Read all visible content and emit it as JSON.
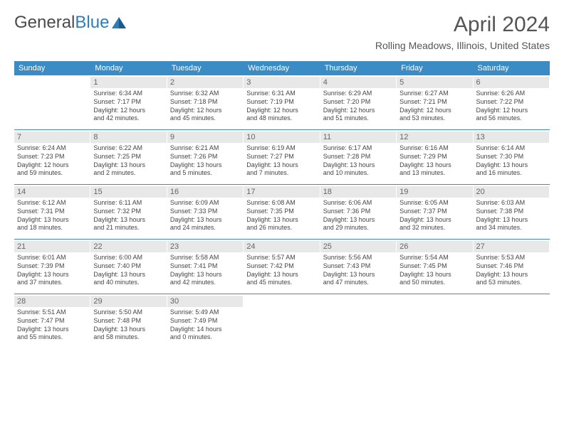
{
  "logo": {
    "word1": "General",
    "word2": "Blue"
  },
  "title": "April 2024",
  "location": "Rolling Meadows, Illinois, United States",
  "dayNames": [
    "Sunday",
    "Monday",
    "Tuesday",
    "Wednesday",
    "Thursday",
    "Friday",
    "Saturday"
  ],
  "colors": {
    "headerBar": "#3b8bc4",
    "daynumBg": "#e8e8e8",
    "text": "#444444",
    "titleText": "#555555",
    "logoGray": "#4a4a4a",
    "logoBlue": "#2a7fba"
  },
  "weeks": [
    [
      {
        "n": "",
        "empty": true,
        "sr": "",
        "ss": "",
        "d1": "",
        "d2": ""
      },
      {
        "n": "1",
        "sr": "Sunrise: 6:34 AM",
        "ss": "Sunset: 7:17 PM",
        "d1": "Daylight: 12 hours",
        "d2": "and 42 minutes."
      },
      {
        "n": "2",
        "sr": "Sunrise: 6:32 AM",
        "ss": "Sunset: 7:18 PM",
        "d1": "Daylight: 12 hours",
        "d2": "and 45 minutes."
      },
      {
        "n": "3",
        "sr": "Sunrise: 6:31 AM",
        "ss": "Sunset: 7:19 PM",
        "d1": "Daylight: 12 hours",
        "d2": "and 48 minutes."
      },
      {
        "n": "4",
        "sr": "Sunrise: 6:29 AM",
        "ss": "Sunset: 7:20 PM",
        "d1": "Daylight: 12 hours",
        "d2": "and 51 minutes."
      },
      {
        "n": "5",
        "sr": "Sunrise: 6:27 AM",
        "ss": "Sunset: 7:21 PM",
        "d1": "Daylight: 12 hours",
        "d2": "and 53 minutes."
      },
      {
        "n": "6",
        "sr": "Sunrise: 6:26 AM",
        "ss": "Sunset: 7:22 PM",
        "d1": "Daylight: 12 hours",
        "d2": "and 56 minutes."
      }
    ],
    [
      {
        "n": "7",
        "sr": "Sunrise: 6:24 AM",
        "ss": "Sunset: 7:23 PM",
        "d1": "Daylight: 12 hours",
        "d2": "and 59 minutes."
      },
      {
        "n": "8",
        "sr": "Sunrise: 6:22 AM",
        "ss": "Sunset: 7:25 PM",
        "d1": "Daylight: 13 hours",
        "d2": "and 2 minutes."
      },
      {
        "n": "9",
        "sr": "Sunrise: 6:21 AM",
        "ss": "Sunset: 7:26 PM",
        "d1": "Daylight: 13 hours",
        "d2": "and 5 minutes."
      },
      {
        "n": "10",
        "sr": "Sunrise: 6:19 AM",
        "ss": "Sunset: 7:27 PM",
        "d1": "Daylight: 13 hours",
        "d2": "and 7 minutes."
      },
      {
        "n": "11",
        "sr": "Sunrise: 6:17 AM",
        "ss": "Sunset: 7:28 PM",
        "d1": "Daylight: 13 hours",
        "d2": "and 10 minutes."
      },
      {
        "n": "12",
        "sr": "Sunrise: 6:16 AM",
        "ss": "Sunset: 7:29 PM",
        "d1": "Daylight: 13 hours",
        "d2": "and 13 minutes."
      },
      {
        "n": "13",
        "sr": "Sunrise: 6:14 AM",
        "ss": "Sunset: 7:30 PM",
        "d1": "Daylight: 13 hours",
        "d2": "and 16 minutes."
      }
    ],
    [
      {
        "n": "14",
        "sr": "Sunrise: 6:12 AM",
        "ss": "Sunset: 7:31 PM",
        "d1": "Daylight: 13 hours",
        "d2": "and 18 minutes."
      },
      {
        "n": "15",
        "sr": "Sunrise: 6:11 AM",
        "ss": "Sunset: 7:32 PM",
        "d1": "Daylight: 13 hours",
        "d2": "and 21 minutes."
      },
      {
        "n": "16",
        "sr": "Sunrise: 6:09 AM",
        "ss": "Sunset: 7:33 PM",
        "d1": "Daylight: 13 hours",
        "d2": "and 24 minutes."
      },
      {
        "n": "17",
        "sr": "Sunrise: 6:08 AM",
        "ss": "Sunset: 7:35 PM",
        "d1": "Daylight: 13 hours",
        "d2": "and 26 minutes."
      },
      {
        "n": "18",
        "sr": "Sunrise: 6:06 AM",
        "ss": "Sunset: 7:36 PM",
        "d1": "Daylight: 13 hours",
        "d2": "and 29 minutes."
      },
      {
        "n": "19",
        "sr": "Sunrise: 6:05 AM",
        "ss": "Sunset: 7:37 PM",
        "d1": "Daylight: 13 hours",
        "d2": "and 32 minutes."
      },
      {
        "n": "20",
        "sr": "Sunrise: 6:03 AM",
        "ss": "Sunset: 7:38 PM",
        "d1": "Daylight: 13 hours",
        "d2": "and 34 minutes."
      }
    ],
    [
      {
        "n": "21",
        "sr": "Sunrise: 6:01 AM",
        "ss": "Sunset: 7:39 PM",
        "d1": "Daylight: 13 hours",
        "d2": "and 37 minutes."
      },
      {
        "n": "22",
        "sr": "Sunrise: 6:00 AM",
        "ss": "Sunset: 7:40 PM",
        "d1": "Daylight: 13 hours",
        "d2": "and 40 minutes."
      },
      {
        "n": "23",
        "sr": "Sunrise: 5:58 AM",
        "ss": "Sunset: 7:41 PM",
        "d1": "Daylight: 13 hours",
        "d2": "and 42 minutes."
      },
      {
        "n": "24",
        "sr": "Sunrise: 5:57 AM",
        "ss": "Sunset: 7:42 PM",
        "d1": "Daylight: 13 hours",
        "d2": "and 45 minutes."
      },
      {
        "n": "25",
        "sr": "Sunrise: 5:56 AM",
        "ss": "Sunset: 7:43 PM",
        "d1": "Daylight: 13 hours",
        "d2": "and 47 minutes."
      },
      {
        "n": "26",
        "sr": "Sunrise: 5:54 AM",
        "ss": "Sunset: 7:45 PM",
        "d1": "Daylight: 13 hours",
        "d2": "and 50 minutes."
      },
      {
        "n": "27",
        "sr": "Sunrise: 5:53 AM",
        "ss": "Sunset: 7:46 PM",
        "d1": "Daylight: 13 hours",
        "d2": "and 53 minutes."
      }
    ],
    [
      {
        "n": "28",
        "sr": "Sunrise: 5:51 AM",
        "ss": "Sunset: 7:47 PM",
        "d1": "Daylight: 13 hours",
        "d2": "and 55 minutes."
      },
      {
        "n": "29",
        "sr": "Sunrise: 5:50 AM",
        "ss": "Sunset: 7:48 PM",
        "d1": "Daylight: 13 hours",
        "d2": "and 58 minutes."
      },
      {
        "n": "30",
        "sr": "Sunrise: 5:49 AM",
        "ss": "Sunset: 7:49 PM",
        "d1": "Daylight: 14 hours",
        "d2": "and 0 minutes."
      },
      {
        "n": "",
        "empty": true,
        "sr": "",
        "ss": "",
        "d1": "",
        "d2": ""
      },
      {
        "n": "",
        "empty": true,
        "sr": "",
        "ss": "",
        "d1": "",
        "d2": ""
      },
      {
        "n": "",
        "empty": true,
        "sr": "",
        "ss": "",
        "d1": "",
        "d2": ""
      },
      {
        "n": "",
        "empty": true,
        "sr": "",
        "ss": "",
        "d1": "",
        "d2": ""
      }
    ]
  ]
}
